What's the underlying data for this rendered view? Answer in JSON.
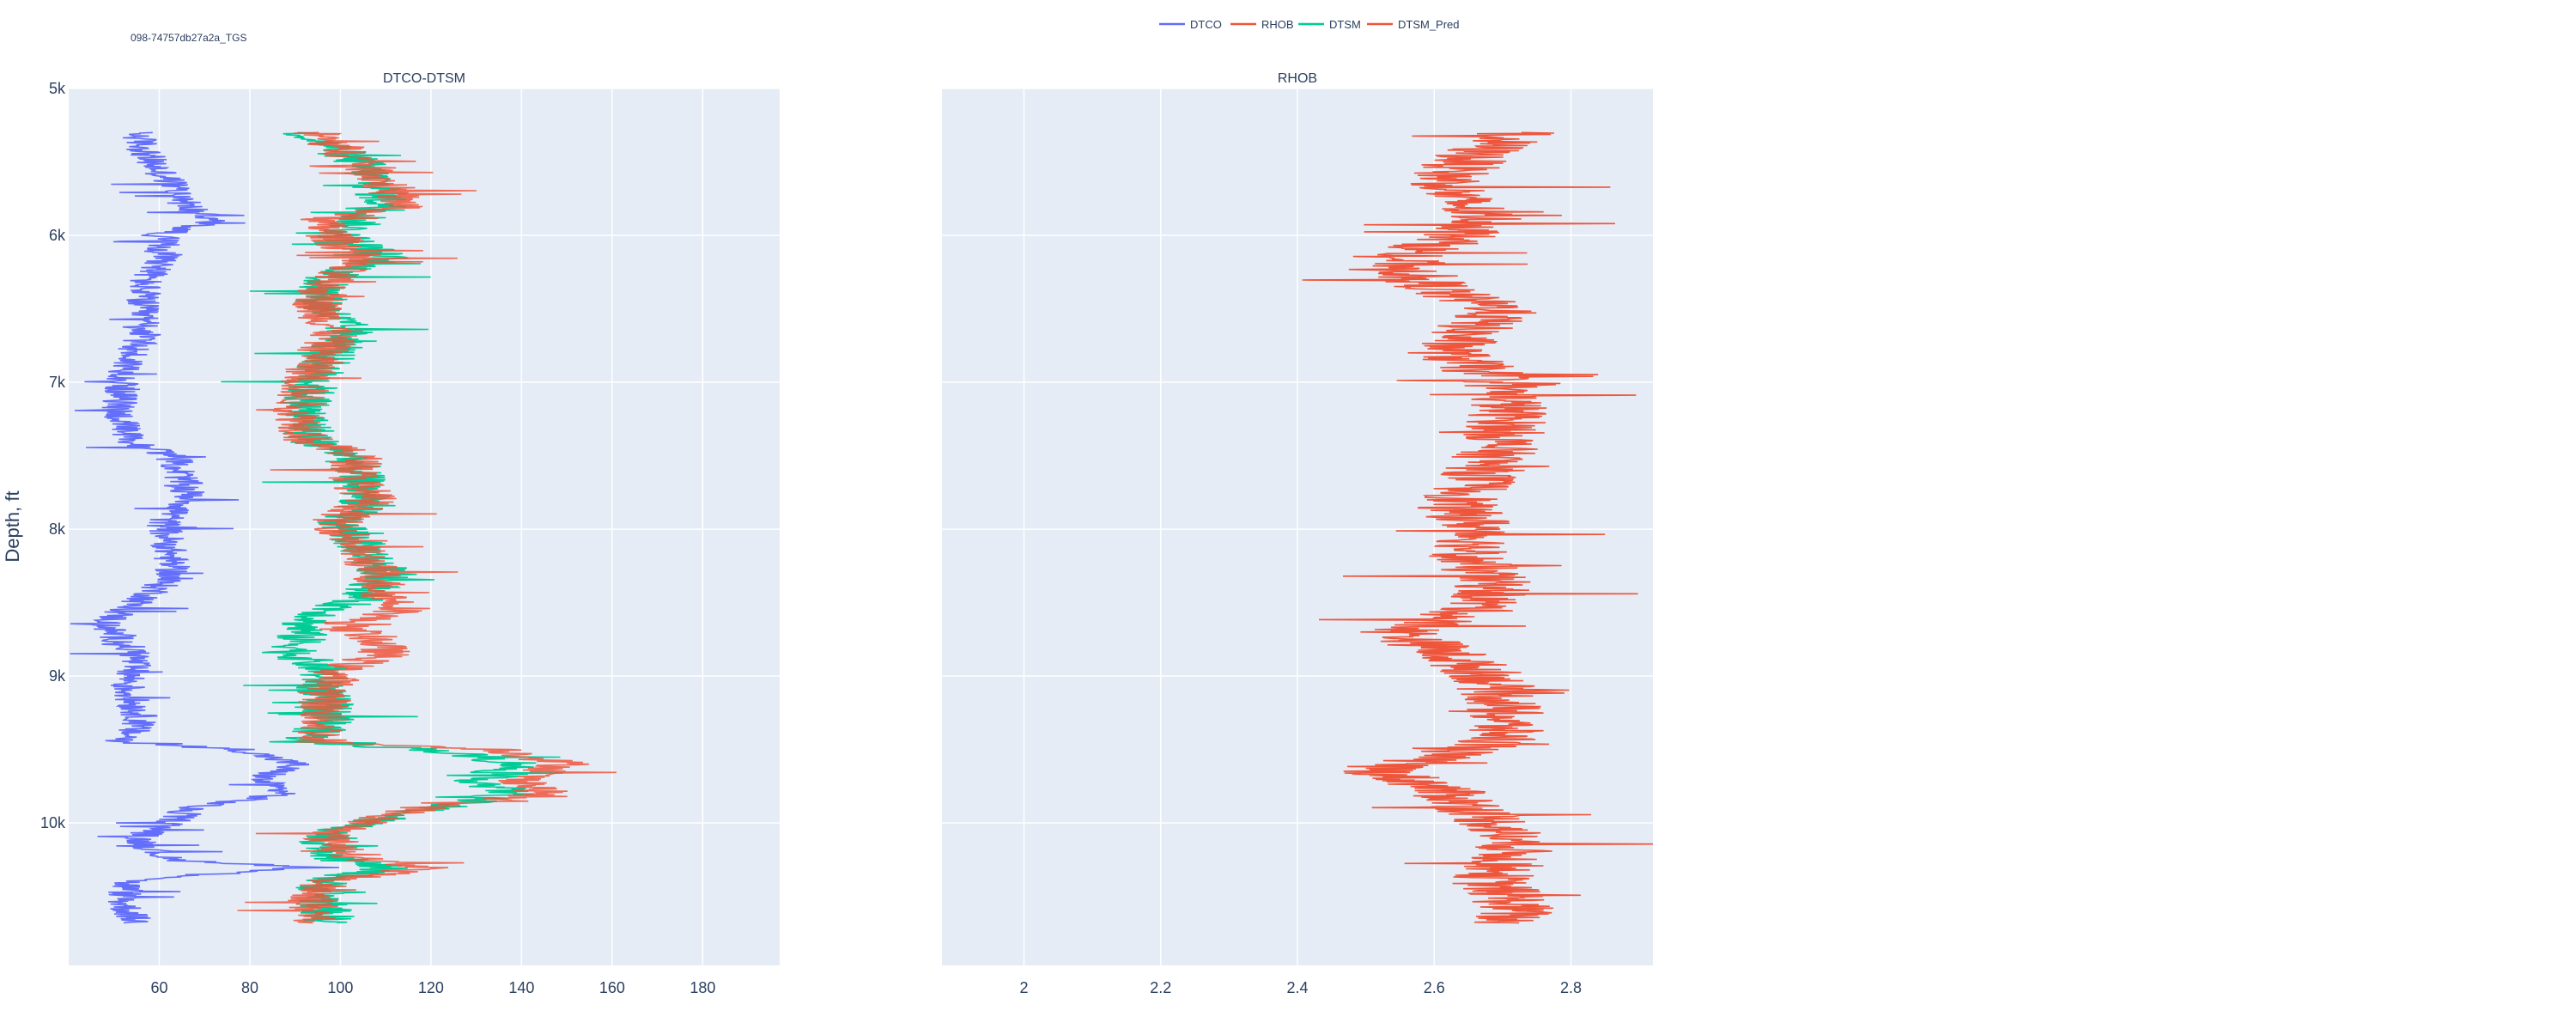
{
  "well_label": "098-74757db27a2a_TGS",
  "colors": {
    "DTCO": "#636efa",
    "RHOB": "#ef553b",
    "DTSM": "#00cc96",
    "DTSM_Pred": "#ef553b",
    "plot_bg": "#e5ecf6",
    "text": "#2a3f5f"
  },
  "chart_data": [
    {
      "type": "line",
      "title": "DTCO-DTSM",
      "ylabel": "Depth, ft",
      "xlim": [
        40,
        197
      ],
      "ylim": [
        10970,
        5000
      ],
      "y_reversed": true,
      "x_ticks": [
        60,
        80,
        100,
        120,
        140,
        160,
        180
      ],
      "x_tick_labels": [
        "60",
        "80",
        "100",
        "120",
        "140",
        "160",
        "180"
      ],
      "y_ticks": [
        5000,
        6000,
        7000,
        8000,
        9000,
        10000
      ],
      "y_tick_labels": [
        "5k",
        "6k",
        "7k",
        "8k",
        "9k",
        "10k"
      ],
      "grid": true,
      "series": [
        {
          "name": "DTCO",
          "depth": [
            5300,
            5500,
            5650,
            5800,
            5900,
            6000,
            6150,
            6300,
            6500,
            6650,
            6800,
            7000,
            7200,
            7400,
            7500,
            7650,
            7800,
            7950,
            8100,
            8300,
            8450,
            8550,
            8650,
            8750,
            8850,
            8950,
            9100,
            9300,
            9450,
            9500,
            9600,
            9700,
            9800,
            9900,
            10000,
            10100,
            10250,
            10300,
            10400,
            10550,
            10680
          ],
          "value": [
            55,
            58,
            63,
            66,
            72,
            60,
            62,
            57,
            56,
            57,
            54,
            52,
            51,
            53,
            63,
            65,
            67,
            61,
            62,
            63,
            58,
            52,
            48,
            51,
            55,
            54,
            53,
            56,
            52,
            78,
            90,
            82,
            88,
            66,
            63,
            55,
            62,
            92,
            53,
            52,
            55
          ]
        },
        {
          "name": "DTSM",
          "depth": [
            5300,
            5500,
            5650,
            5800,
            5900,
            6000,
            6150,
            6300,
            6500,
            6650,
            6800,
            7000,
            7200,
            7400,
            7500,
            7650,
            7800,
            7950,
            8100,
            8300,
            8450,
            8550,
            8650,
            8750,
            8850,
            8950,
            9100,
            9300,
            9450,
            9500,
            9600,
            9700,
            9800,
            9900,
            10000,
            10100,
            10250,
            10300,
            10400,
            10550,
            10680
          ],
          "value": [
            92,
            104,
            108,
            110,
            104,
            100,
            110,
            96,
            96,
            102,
            98,
            94,
            92,
            94,
            102,
            104,
            106,
            100,
            104,
            110,
            106,
            98,
            92,
            91,
            90,
            96,
            96,
            98,
            92,
            120,
            140,
            130,
            138,
            120,
            105,
            96,
            100,
            110,
            96,
            96,
            98
          ]
        },
        {
          "name": "DTSM_Pred",
          "depth": [
            5300,
            5500,
            5650,
            5800,
            5900,
            6000,
            6150,
            6300,
            6500,
            6650,
            6800,
            7000,
            7200,
            7400,
            7500,
            7650,
            7800,
            7950,
            8100,
            8300,
            8450,
            8550,
            8650,
            8750,
            8850,
            8950,
            9100,
            9300,
            9450,
            9500,
            9600,
            9700,
            9800,
            9900,
            10000,
            10100,
            10250,
            10300,
            10400,
            10550,
            10680
          ],
          "value": [
            94,
            105,
            110,
            114,
            95,
            98,
            104,
            97,
            95,
            99,
            96,
            92,
            91,
            93,
            104,
            103,
            107,
            99,
            103,
            108,
            110,
            115,
            100,
            108,
            110,
            100,
            97,
            96,
            96,
            135,
            150,
            140,
            145,
            118,
            104,
            97,
            105,
            120,
            96,
            94,
            94
          ]
        }
      ]
    },
    {
      "type": "line",
      "title": "RHOB",
      "xlim": [
        1.88,
        2.92
      ],
      "ylim": [
        10970,
        5000
      ],
      "y_reversed": true,
      "x_ticks": [
        2.0,
        2.2,
        2.4,
        2.6,
        2.8
      ],
      "x_tick_labels": [
        "2",
        "2.2",
        "2.4",
        "2.6",
        "2.8"
      ],
      "y_ticks": [
        5000,
        6000,
        7000,
        8000,
        9000,
        10000
      ],
      "grid": true,
      "series": [
        {
          "name": "RHOB",
          "depth": [
            5300,
            5450,
            5600,
            5750,
            5900,
            6000,
            6150,
            6300,
            6400,
            6500,
            6650,
            6800,
            7000,
            7200,
            7400,
            7550,
            7700,
            7850,
            8000,
            8200,
            8400,
            8550,
            8700,
            8850,
            9000,
            9150,
            9300,
            9450,
            9550,
            9650,
            9750,
            9850,
            10000,
            10150,
            10300,
            10400,
            10500,
            10600,
            10680
          ],
          "value": [
            2.72,
            2.66,
            2.62,
            2.63,
            2.68,
            2.64,
            2.55,
            2.58,
            2.62,
            2.7,
            2.65,
            2.62,
            2.7,
            2.71,
            2.7,
            2.68,
            2.66,
            2.63,
            2.67,
            2.65,
            2.69,
            2.66,
            2.55,
            2.62,
            2.68,
            2.7,
            2.7,
            2.7,
            2.6,
            2.52,
            2.6,
            2.64,
            2.69,
            2.72,
            2.7,
            2.68,
            2.71,
            2.72,
            2.7
          ]
        }
      ]
    }
  ]
}
